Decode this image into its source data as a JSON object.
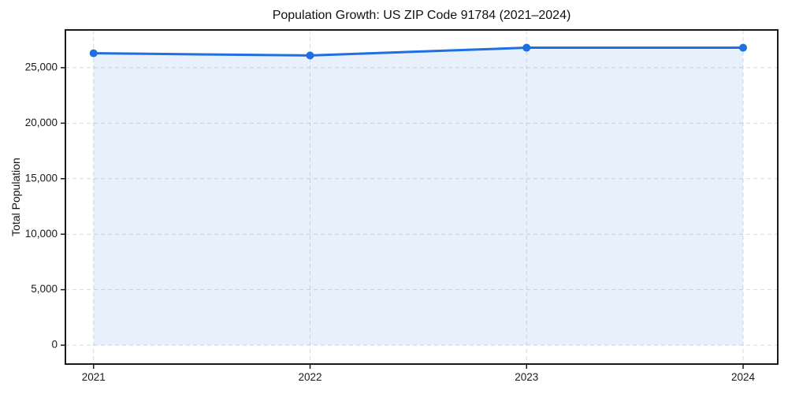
{
  "figure": {
    "background": "#ffffff"
  },
  "chart_data": {
    "type": "area",
    "title": "Population Growth: US ZIP Code 91784 (2021–2024)",
    "xlabel": "",
    "ylabel": "Total Population",
    "categories": [
      "2021",
      "2022",
      "2023",
      "2024"
    ],
    "x": [
      2021,
      2022,
      2023,
      2024
    ],
    "series": [
      {
        "name": "Total Population",
        "values": [
          26300,
          26100,
          26800,
          26800
        ]
      }
    ],
    "yticks": [
      0,
      5000,
      10000,
      15000,
      20000,
      25000
    ],
    "ytick_labels": [
      "0",
      "5,000",
      "10,000",
      "15,000",
      "20,000",
      "25,000"
    ],
    "ylim": [
      -1700,
      28400
    ],
    "xlim": [
      2020.87,
      2024.16
    ],
    "baseline_value": 0,
    "grid": {
      "visible": true,
      "style": "dashed",
      "axes": "both"
    },
    "legend": {
      "visible": false
    },
    "colors": {
      "line": "#1f6fe0",
      "marker": "#1f6fe0",
      "area_fill": "rgba(31,111,224,0.10)",
      "grid": "#d9d9d9",
      "spine": "#1a1a1a",
      "tick_label": "#1a1a1a",
      "title_text": "#111111",
      "background": "#ffffff"
    }
  }
}
